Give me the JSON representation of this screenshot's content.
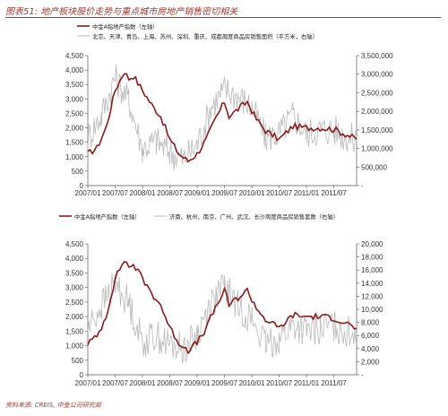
{
  "figure": {
    "title": "图表51: 地产板块股价走势与重点城市房地产销售密切相关",
    "source": "资料来源: CREIS, 中金公司研究部"
  },
  "colors": {
    "primary": "#8b1a1a",
    "secondary": "#b8b8b8",
    "accent": "#a0392f"
  },
  "chart_data": [
    {
      "type": "line",
      "x_ticks": [
        "2007/01",
        "2007/07",
        "2008/01",
        "2008/07",
        "2009/01",
        "2009/07",
        "2010/01",
        "2010/07",
        "2011/01",
        "2011/07"
      ],
      "x_range": [
        "2007/01",
        "2011/12"
      ],
      "left_axis": {
        "label": "中金A指地产指数（左轴）",
        "ticks": [
          0,
          500,
          1000,
          1500,
          2000,
          2500,
          3000,
          3500,
          4000,
          4500
        ],
        "ylim": [
          0,
          4500
        ]
      },
      "right_axis": {
        "label": "北京、天津、青岛、上海、苏州、深圳、重庆、成都周度商品房销售面积（平方米，右轴）",
        "ticks": [
          "-",
          "500,000",
          "1,000,000",
          "1,500,000",
          "2,000,000",
          "2,500,000",
          "3,000,000",
          "3,500,000"
        ],
        "ylim": [
          0,
          3500000
        ]
      },
      "series": [
        {
          "name": "中金A指地产指数（左轴）",
          "axis": "left",
          "x": [
            "2007/01",
            "2007/03",
            "2007/05",
            "2007/07",
            "2007/09",
            "2007/10",
            "2007/11",
            "2008/01",
            "2008/03",
            "2008/05",
            "2008/07",
            "2008/09",
            "2008/11",
            "2009/01",
            "2009/03",
            "2009/05",
            "2009/07",
            "2009/08",
            "2009/10",
            "2009/12",
            "2010/02",
            "2010/04",
            "2010/07",
            "2010/10",
            "2011/01",
            "2011/04",
            "2011/07",
            "2011/10",
            "2011/12"
          ],
          "values": [
            1100,
            1300,
            2000,
            3300,
            3950,
            3700,
            3800,
            3300,
            2800,
            2400,
            1600,
            1100,
            850,
            1100,
            1600,
            2300,
            2900,
            2400,
            2650,
            2900,
            2300,
            1900,
            1600,
            2050,
            2000,
            2000,
            1950,
            1750,
            1600
          ]
        },
        {
          "name": "北京、天津、青岛、上海、苏州、深圳、重庆、成都周度商品房销售面积（平方米，右轴）",
          "axis": "right",
          "x": [
            "2007/01",
            "2007/04",
            "2007/07",
            "2007/10",
            "2008/01",
            "2008/04",
            "2008/07",
            "2008/10",
            "2009/01",
            "2009/04",
            "2009/07",
            "2009/10",
            "2010/01",
            "2010/04",
            "2010/07",
            "2010/10",
            "2011/01",
            "2011/04",
            "2011/07",
            "2011/10",
            "2011/12"
          ],
          "values": [
            1300000,
            1900000,
            2900000,
            2300000,
            1000000,
            1200000,
            900000,
            700000,
            1100000,
            2100000,
            2600000,
            2400000,
            2100000,
            1300000,
            1400000,
            1900000,
            1400000,
            1500000,
            1500000,
            1300000,
            1200000
          ]
        }
      ]
    },
    {
      "type": "line",
      "x_ticks": [
        "2007/01",
        "2007/07",
        "2008/01",
        "2008/07",
        "2009/01",
        "2009/07",
        "2010/01",
        "2010/07",
        "2011/01",
        "2011/07"
      ],
      "x_range": [
        "2007/01",
        "2011/12"
      ],
      "left_axis": {
        "label": "中金A指地产指数（左轴）",
        "ticks": [
          0,
          500,
          1000,
          1500,
          2000,
          2500,
          3000,
          3500,
          4000,
          4500
        ],
        "ylim": [
          0,
          4500
        ]
      },
      "right_axis": {
        "label": "济南、杭州、南京、广州、武汉、长沙周度商品房销售套数（右轴）",
        "ticks": [
          "-",
          "2,000",
          "4,000",
          "6,000",
          "8,000",
          "10,000",
          "12,000",
          "14,000",
          "16,000",
          "18,000",
          "20,000"
        ],
        "ylim": [
          0,
          20000
        ]
      },
      "series": [
        {
          "name": "中金A指地产指数（左轴）",
          "axis": "left",
          "x": [
            "2007/01",
            "2007/03",
            "2007/05",
            "2007/07",
            "2007/09",
            "2007/10",
            "2007/11",
            "2008/01",
            "2008/03",
            "2008/05",
            "2008/07",
            "2008/09",
            "2008/11",
            "2009/01",
            "2009/03",
            "2009/05",
            "2009/07",
            "2009/08",
            "2009/10",
            "2009/12",
            "2010/02",
            "2010/04",
            "2010/07",
            "2010/10",
            "2011/01",
            "2011/04",
            "2011/07",
            "2011/10",
            "2011/12"
          ],
          "values": [
            1100,
            1300,
            2000,
            3300,
            3950,
            3700,
            3800,
            3300,
            2800,
            2400,
            1600,
            1100,
            850,
            1100,
            1600,
            2300,
            2900,
            2400,
            2650,
            2900,
            2300,
            1900,
            1600,
            2050,
            2000,
            2000,
            1950,
            1750,
            1600
          ]
        },
        {
          "name": "济南、杭州、南京、广州、武汉、长沙周度商品房销售套数（右轴）",
          "axis": "right",
          "x": [
            "2007/01",
            "2007/04",
            "2007/07",
            "2007/10",
            "2008/01",
            "2008/04",
            "2008/07",
            "2008/10",
            "2009/01",
            "2009/04",
            "2009/07",
            "2009/10",
            "2010/01",
            "2010/04",
            "2010/07",
            "2010/10",
            "2011/01",
            "2011/04",
            "2011/07",
            "2011/10",
            "2011/12"
          ],
          "values": [
            7000,
            10500,
            14000,
            11000,
            5000,
            6000,
            4500,
            4000,
            6000,
            11000,
            13500,
            10500,
            8500,
            4500,
            5500,
            7500,
            6500,
            7000,
            7500,
            6500,
            6500
          ]
        }
      ]
    }
  ]
}
